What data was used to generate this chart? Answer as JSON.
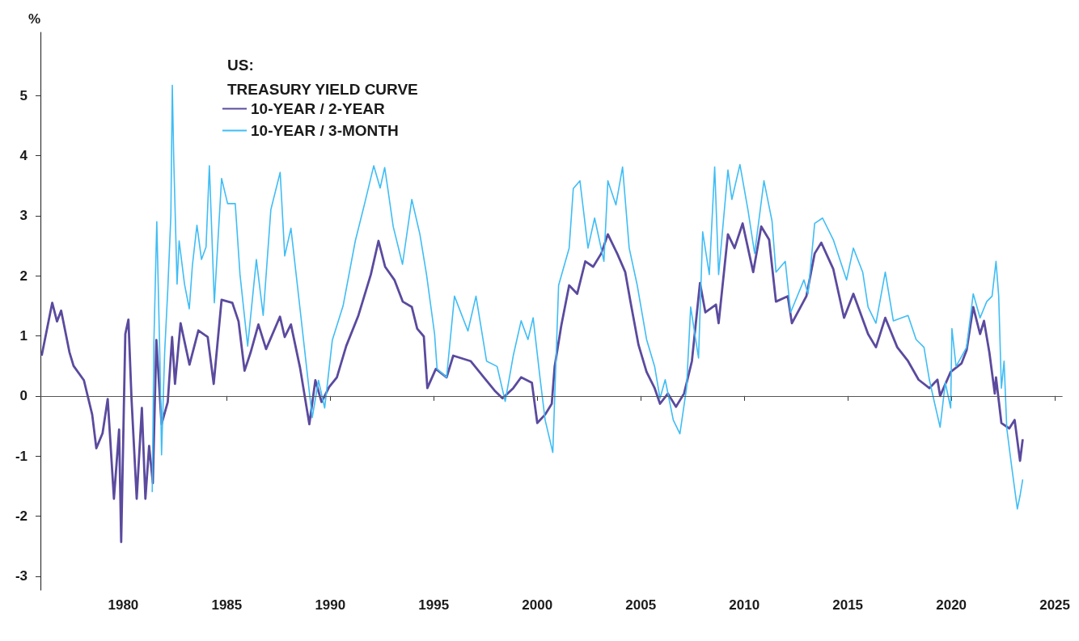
{
  "chart_data": {
    "type": "line",
    "title": "US:",
    "subtitle": "TREASURY YIELD CURVE",
    "ylabel": "%",
    "xlim": [
      1976,
      2025.35
    ],
    "xticks": [
      1980,
      1985,
      1990,
      1995,
      2000,
      2005,
      2010,
      2015,
      2020,
      2025
    ],
    "ylim": [
      -3.23,
      6.05
    ],
    "yticks": [
      -3,
      -2,
      -1,
      0,
      1,
      2,
      3,
      4,
      5
    ],
    "grid": false,
    "legend": "top left",
    "marker": "none",
    "line_style": "solid",
    "ref_lines": [
      {
        "axis": "y",
        "value": 0,
        "color": "#555555"
      }
    ],
    "series": [
      {
        "name": "10-YEAR / 2-YEAR",
        "color": "#5b4a9e",
        "x": [
          1976.06,
          1976.57,
          1976.8,
          1977.0,
          1977.4,
          1977.6,
          1978.1,
          1978.5,
          1978.7,
          1979.0,
          1979.25,
          1979.55,
          1979.8,
          1979.9,
          1980.1,
          1980.25,
          1980.4,
          1980.65,
          1980.9,
          1981.07,
          1981.25,
          1981.43,
          1981.6,
          1981.85,
          1982.15,
          1982.36,
          1982.5,
          1982.77,
          1983.2,
          1983.63,
          1984.08,
          1984.37,
          1984.75,
          1985.27,
          1985.57,
          1985.86,
          1986.15,
          1986.53,
          1986.9,
          1987.57,
          1987.8,
          1988.1,
          1988.54,
          1988.99,
          1989.28,
          1989.58,
          1989.95,
          1990.32,
          1990.77,
          1991.36,
          1991.96,
          1992.33,
          1992.65,
          1993.1,
          1993.5,
          1993.94,
          1994.2,
          1994.52,
          1994.69,
          1995.1,
          1995.62,
          1995.94,
          1996.78,
          1997.42,
          1997.94,
          1998.32,
          1998.84,
          1999.22,
          1999.74,
          2000.0,
          2000.38,
          2000.7,
          2000.84,
          2001.16,
          2001.54,
          2001.93,
          2002.32,
          2002.7,
          2003.09,
          2003.41,
          2003.86,
          2004.25,
          2004.5,
          2004.89,
          2005.28,
          2005.67,
          2005.93,
          2006.31,
          2006.7,
          2007.09,
          2007.47,
          2007.86,
          2008.12,
          2008.63,
          2008.76,
          2009.21,
          2009.53,
          2009.92,
          2010.43,
          2010.82,
          2011.2,
          2011.53,
          2012.1,
          2012.3,
          2013.0,
          2013.4,
          2013.72,
          2014.3,
          2014.82,
          2015.27,
          2015.98,
          2016.36,
          2016.81,
          2017.39,
          2017.91,
          2018.42,
          2018.94,
          2019.33,
          2019.46,
          2019.97,
          2020.49,
          2020.74,
          2021.06,
          2021.39,
          2021.58,
          2021.84,
          2022.1,
          2022.16,
          2022.42,
          2022.8,
          2023.06,
          2023.32,
          2023.45
        ],
        "values": [
          0.67,
          1.55,
          1.24,
          1.42,
          0.73,
          0.5,
          0.26,
          -0.31,
          -0.87,
          -0.62,
          -0.05,
          -1.71,
          -0.56,
          -2.43,
          1.03,
          1.27,
          -0.05,
          -1.71,
          -0.2,
          -1.71,
          -0.83,
          -1.45,
          0.93,
          -0.47,
          -0.1,
          0.98,
          0.2,
          1.21,
          0.52,
          1.09,
          0.98,
          0.2,
          1.6,
          1.55,
          1.24,
          0.42,
          0.72,
          1.19,
          0.78,
          1.32,
          0.98,
          1.19,
          0.47,
          -0.47,
          0.26,
          -0.1,
          0.15,
          0.31,
          0.83,
          1.34,
          2.02,
          2.58,
          2.15,
          1.93,
          1.57,
          1.48,
          1.12,
          0.99,
          0.13,
          0.45,
          0.31,
          0.67,
          0.58,
          0.31,
          0.09,
          -0.04,
          0.13,
          0.31,
          0.22,
          -0.45,
          -0.31,
          -0.13,
          0.49,
          1.17,
          1.84,
          1.7,
          2.24,
          2.15,
          2.37,
          2.69,
          2.37,
          2.06,
          1.57,
          0.85,
          0.4,
          0.13,
          -0.13,
          0.04,
          -0.18,
          0.04,
          0.58,
          1.88,
          1.39,
          1.52,
          1.21,
          2.69,
          2.46,
          2.87,
          2.06,
          2.82,
          2.6,
          1.57,
          1.66,
          1.21,
          1.66,
          2.37,
          2.55,
          2.11,
          1.3,
          1.7,
          1.03,
          0.81,
          1.3,
          0.81,
          0.58,
          0.27,
          0.13,
          0.27,
          0.0,
          0.4,
          0.54,
          0.76,
          1.48,
          1.03,
          1.25,
          0.72,
          0.04,
          0.31,
          -0.45,
          -0.54,
          -0.4,
          -1.08,
          -0.72
        ]
      },
      {
        "name": "10-YEAR / 3-MONTH",
        "color": "#3fbdf5",
        "x": [
          1981.4,
          1981.48,
          1981.62,
          1981.78,
          1981.85,
          1982.0,
          1982.15,
          1982.3,
          1982.37,
          1982.44,
          1982.6,
          1982.7,
          1982.96,
          1983.19,
          1983.34,
          1983.56,
          1983.78,
          1984.0,
          1984.16,
          1984.4,
          1984.75,
          1985.04,
          1985.41,
          1985.64,
          1986.01,
          1986.43,
          1986.76,
          1987.13,
          1987.58,
          1987.8,
          1988.1,
          1988.54,
          1988.91,
          1989.13,
          1989.43,
          1989.73,
          1990.1,
          1990.62,
          1991.21,
          1991.66,
          1992.1,
          1992.41,
          1992.63,
          1992.78,
          1993.04,
          1993.49,
          1993.94,
          1994.33,
          1994.65,
          1995.04,
          1995.16,
          1995.62,
          1996.0,
          1996.65,
          1997.04,
          1997.55,
          1998.06,
          1998.45,
          1998.84,
          1999.22,
          1999.55,
          1999.8,
          2000.13,
          2000.38,
          2000.75,
          2001.03,
          2001.54,
          2001.74,
          2002.06,
          2002.45,
          2002.77,
          2003.22,
          2003.41,
          2003.8,
          2004.12,
          2004.44,
          2004.83,
          2005.28,
          2005.67,
          2005.93,
          2006.18,
          2006.57,
          2006.89,
          2007.21,
          2007.41,
          2007.79,
          2007.99,
          2008.31,
          2008.57,
          2008.76,
          2009.21,
          2009.4,
          2009.79,
          2010.18,
          2010.5,
          2010.95,
          2011.34,
          2011.53,
          2011.98,
          2012.24,
          2012.88,
          2013.08,
          2013.4,
          2013.78,
          2014.3,
          2014.94,
          2015.27,
          2015.72,
          2015.98,
          2016.36,
          2016.81,
          2017.2,
          2017.91,
          2018.3,
          2018.68,
          2018.94,
          2019.2,
          2019.46,
          2019.71,
          2019.97,
          2020.03,
          2020.23,
          2020.74,
          2021.06,
          2021.39,
          2021.71,
          2021.97,
          2022.16,
          2022.29,
          2022.42,
          2022.55,
          2022.68,
          2022.93,
          2023.19,
          2023.32,
          2023.45
        ],
        "values": [
          -1.6,
          0.88,
          2.9,
          0.47,
          -0.98,
          0.72,
          1.76,
          3.0,
          5.17,
          3.93,
          1.86,
          2.58,
          1.86,
          1.45,
          2.17,
          2.84,
          2.27,
          2.48,
          3.83,
          1.55,
          3.62,
          3.2,
          3.2,
          2.02,
          0.83,
          2.27,
          1.34,
          3.1,
          3.72,
          2.33,
          2.79,
          1.45,
          0.31,
          -0.36,
          0.26,
          -0.2,
          0.93,
          1.5,
          2.58,
          3.2,
          3.83,
          3.46,
          3.8,
          3.45,
          2.82,
          2.19,
          3.27,
          2.69,
          2.02,
          1.03,
          0.45,
          0.31,
          1.66,
          1.08,
          1.66,
          0.58,
          0.49,
          -0.09,
          0.67,
          1.25,
          0.94,
          1.3,
          0.31,
          -0.4,
          -0.94,
          1.84,
          2.46,
          3.45,
          3.58,
          2.46,
          2.96,
          2.24,
          3.58,
          3.18,
          3.81,
          2.46,
          1.84,
          0.94,
          0.49,
          -0.04,
          0.27,
          -0.4,
          -0.63,
          0.13,
          1.48,
          0.63,
          2.73,
          2.02,
          3.81,
          2.02,
          3.76,
          3.27,
          3.85,
          3.09,
          2.37,
          3.58,
          2.91,
          2.06,
          2.24,
          1.39,
          1.93,
          1.7,
          2.87,
          2.96,
          2.6,
          1.93,
          2.46,
          2.06,
          1.48,
          1.21,
          2.06,
          1.25,
          1.34,
          0.94,
          0.81,
          0.27,
          -0.13,
          -0.52,
          0.22,
          -0.2,
          1.12,
          0.49,
          0.81,
          1.7,
          1.3,
          1.57,
          1.66,
          2.24,
          1.66,
          0.13,
          0.58,
          -0.54,
          -1.21,
          -1.88,
          -1.66,
          -1.39
        ]
      }
    ]
  }
}
